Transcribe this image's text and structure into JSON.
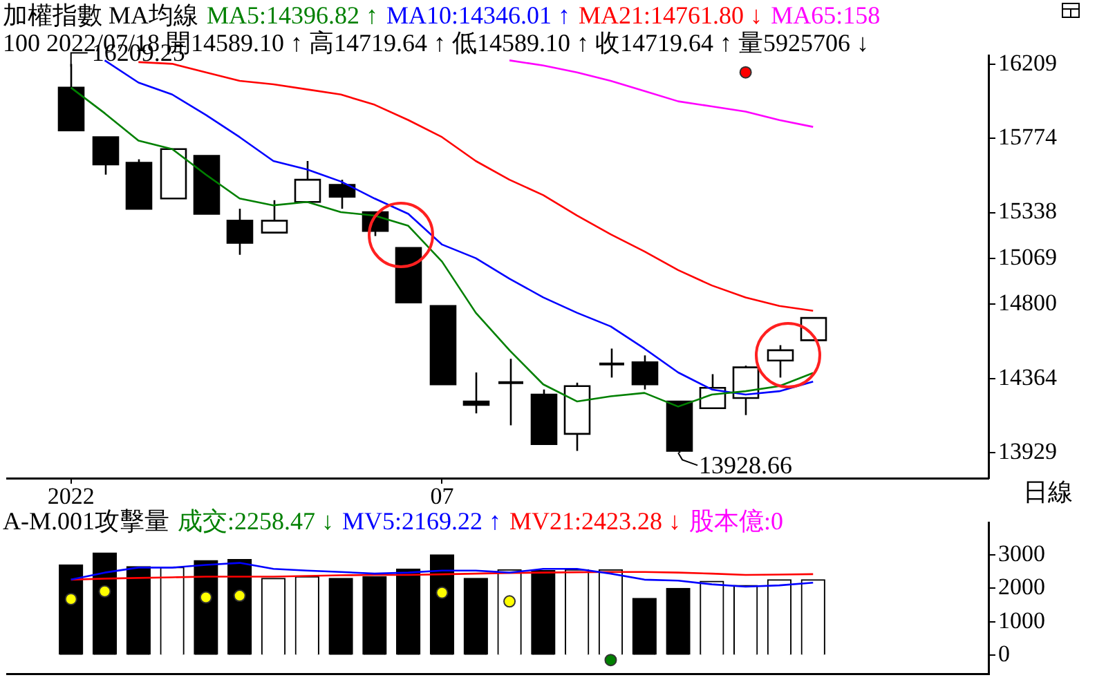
{
  "chart_data": [
    {
      "type": "candlestick",
      "title": "加權指數 MA均線",
      "subtitle": "100 2022/07/18 開14589.10 ↑ 高14719.64 ↑ 低14589.10 ↑ 收14719.64 ↑ 量5925706 ↓",
      "categories": [
        "2022",
        null,
        null,
        null,
        null,
        null,
        null,
        null,
        null,
        null,
        null,
        "07",
        null,
        null,
        null,
        null,
        null,
        null,
        null,
        null,
        null,
        null,
        null
      ],
      "ohlc": [
        [
          16070,
          16209.25,
          15820,
          15820
        ],
        [
          15780,
          15780,
          15560,
          15620
        ],
        [
          15630,
          15650,
          15360,
          15360
        ],
        [
          15420,
          15710,
          15420,
          15710
        ],
        [
          15670,
          15670,
          15330,
          15330
        ],
        [
          15290,
          15360,
          15090,
          15160
        ],
        [
          15220,
          15410,
          15220,
          15290
        ],
        [
          15400,
          15640,
          15400,
          15530
        ],
        [
          15500,
          15530,
          15360,
          15430
        ],
        [
          15340,
          15340,
          15200,
          15230
        ],
        [
          15130,
          15130,
          14810,
          14810
        ],
        [
          14790,
          14790,
          14330,
          14330
        ],
        [
          14230,
          14400,
          14160,
          14210
        ],
        [
          14340,
          14480,
          14090,
          14340
        ],
        [
          14270,
          14300,
          13980,
          13980
        ],
        [
          14040,
          14340,
          13940,
          14320
        ],
        [
          14450,
          14540,
          14370,
          14450
        ],
        [
          14460,
          14500,
          14300,
          14330
        ],
        [
          14230,
          14230,
          13928.66,
          13940
        ],
        [
          14190,
          14390,
          14190,
          14310
        ],
        [
          14250,
          14440,
          14150,
          14430
        ],
        [
          14470,
          14560,
          14370,
          14530
        ],
        [
          14589.1,
          14719.64,
          14589.1,
          14719.64
        ]
      ],
      "series": [
        {
          "type": "line",
          "name": "MA5:14396.82 ↑",
          "color": "#008000",
          "values": [
            16070,
            15920,
            15760,
            15710,
            15560,
            15420,
            15380,
            15400,
            15340,
            15320,
            15260,
            15050,
            14750,
            14530,
            14330,
            14230,
            14260,
            14280,
            14200,
            14270,
            14290,
            14320,
            14396.82
          ]
        },
        {
          "type": "line",
          "name": "MA10:14346.01 ↑",
          "color": "#0000ff",
          "values": [
            null,
            16230,
            16100,
            16030,
            15910,
            15780,
            15640,
            15590,
            15520,
            15420,
            15330,
            15150,
            15070,
            14950,
            14840,
            14750,
            14670,
            14540,
            14400,
            14300,
            14270,
            14290,
            14346.01
          ]
        },
        {
          "type": "line",
          "name": "MA21:14761.80 ↓",
          "color": "#ff0000",
          "values": [
            null,
            null,
            16220,
            16210,
            16160,
            16110,
            16090,
            16060,
            16030,
            15970,
            15880,
            15780,
            15640,
            15530,
            15440,
            15320,
            15210,
            15110,
            15000,
            14910,
            14840,
            14790,
            14761.8
          ]
        },
        {
          "type": "line",
          "name": "MA65:158",
          "color": "#ff00ff",
          "values": [
            null,
            null,
            null,
            null,
            null,
            null,
            null,
            null,
            null,
            null,
            null,
            null,
            null,
            16230,
            16200,
            16160,
            16110,
            16050,
            15990,
            15960,
            15930,
            15880,
            15840
          ]
        },
        {
          "type": "scatter",
          "color": "#ff0000",
          "values": [
            null,
            null,
            null,
            null,
            null,
            null,
            null,
            null,
            null,
            null,
            null,
            null,
            null,
            null,
            null,
            null,
            null,
            null,
            null,
            null,
            16160,
            null,
            null
          ]
        }
      ],
      "ylim": [
        13780,
        16260
      ],
      "yticks": [
        13929,
        14364,
        14800,
        15069,
        15338,
        15774,
        16209
      ],
      "grid": false,
      "legend": "top",
      "line_style": "solid",
      "annotations": [
        "16209.25",
        "13928.66",
        "日線"
      ]
    },
    {
      "type": "bar",
      "title": "A-M.001攻擊量",
      "categories": [
        null,
        null,
        null,
        null,
        null,
        null,
        null,
        null,
        null,
        null,
        null,
        null,
        null,
        null,
        null,
        null,
        null,
        null,
        null,
        null,
        null,
        null,
        null
      ],
      "series": [
        {
          "type": "bar",
          "colors": [
            "#000000",
            "#000000",
            "#000000",
            "#ffffff",
            "#000000",
            "#000000",
            "#ffffff",
            "#ffffff",
            "#000000",
            "#000000",
            "#000000",
            "#000000",
            "#000000",
            "#ffffff",
            "#000000",
            "#ffffff",
            "#ffffff",
            "#000000",
            "#000000",
            "#ffffff",
            "#ffffff",
            "#ffffff",
            "#ffffff"
          ],
          "values": [
            2700,
            3060,
            2650,
            2630,
            2830,
            2860,
            2300,
            2350,
            2300,
            2350,
            2580,
            3000,
            2300,
            2560,
            2530,
            2560,
            2560,
            1700,
            2000,
            2210,
            2090,
            2260,
            2258.47
          ]
        },
        {
          "type": "line",
          "name": "MV5:2169.22 ↑",
          "color": "#0000ff",
          "values": [
            2260,
            2470,
            2620,
            2620,
            2700,
            2760,
            2580,
            2530,
            2490,
            2440,
            2470,
            2530,
            2530,
            2470,
            2580,
            2580,
            2440,
            2260,
            2230,
            2120,
            2050,
            2090,
            2169.22
          ]
        },
        {
          "type": "line",
          "name": "MV21:2423.28 ↓",
          "color": "#ff0000",
          "values": [
            2260,
            2290,
            2310,
            2330,
            2350,
            2350,
            2350,
            2370,
            2390,
            2400,
            2400,
            2420,
            2440,
            2460,
            2470,
            2480,
            2490,
            2490,
            2470,
            2440,
            2400,
            2410,
            2423.28
          ]
        },
        {
          "type": "scatter",
          "color": "#ffff00",
          "values": [
            1680,
            1910,
            null,
            null,
            1730,
            1780,
            null,
            null,
            null,
            null,
            null,
            1870,
            null,
            1610,
            null,
            null,
            null,
            null,
            null,
            null,
            null,
            null,
            null
          ]
        },
        {
          "type": "scatter",
          "color": "#008000",
          "values": [
            null,
            null,
            null,
            null,
            null,
            null,
            null,
            null,
            null,
            null,
            null,
            null,
            null,
            null,
            null,
            null,
            -140,
            null,
            null,
            null,
            null,
            null,
            null
          ]
        }
      ],
      "ylim": [
        -560,
        3960
      ],
      "yticks": [
        0,
        1000,
        2000,
        3000
      ],
      "grid": false,
      "legend": "top",
      "tick_labels": "y",
      "line_style": "solid",
      "annotations": [
        "成交:2258.47 ↓",
        "股本億:0"
      ]
    }
  ]
}
